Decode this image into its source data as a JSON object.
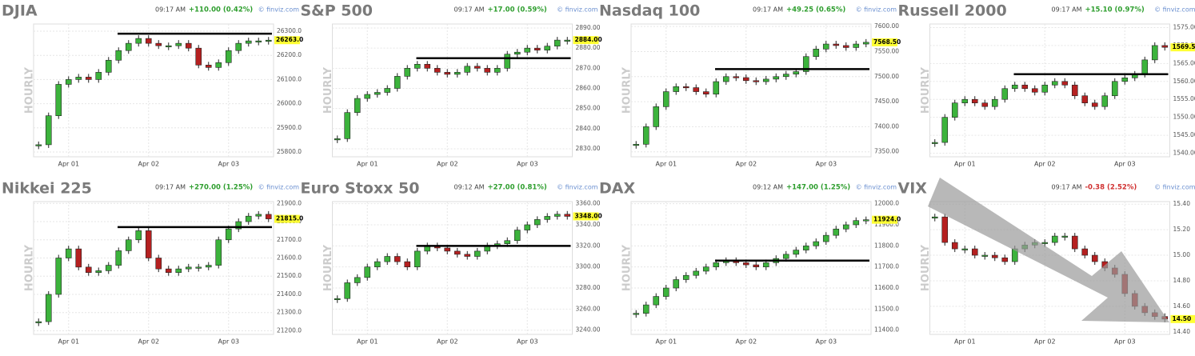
{
  "chart_data": [
    {
      "type": "candlestick",
      "title": "DJIA",
      "time": "09:17 AM",
      "change": "+110.00 (0.42%)",
      "source": "© finviz.com",
      "interval": "HOURLY",
      "categories": [
        null,
        null,
        null,
        "Apr 01",
        null,
        null,
        null,
        null,
        null,
        null,
        null,
        "Apr 02",
        null,
        null,
        null,
        null,
        null,
        null,
        null,
        "Apr 03",
        null,
        null,
        null,
        null
      ],
      "values": [
        25830,
        25950,
        26080,
        26100,
        26110,
        26100,
        26130,
        26180,
        26220,
        26250,
        26270,
        26250,
        26240,
        26240,
        26250,
        26230,
        26160,
        26150,
        26170,
        26220,
        26250,
        26260,
        26260,
        26263
      ],
      "value_labels": [
        null,
        null,
        null,
        null,
        null,
        null,
        null,
        null,
        null,
        null,
        null,
        null,
        null,
        null,
        null,
        null,
        null,
        null,
        null,
        null,
        null,
        null,
        null,
        "26263.0"
      ],
      "level": 26290,
      "ylim": [
        25780,
        26330
      ],
      "yticks": [
        {
          "value": 25800,
          "label": "25800.0"
        },
        {
          "value": 25900,
          "label": "25900.0"
        },
        {
          "value": 26000,
          "label": "26000.0"
        },
        {
          "value": 26100,
          "label": "26100.0"
        },
        {
          "value": 26200,
          "label": "26200.0"
        },
        {
          "value": 26300,
          "label": "26300.0"
        }
      ],
      "change_color": "#2e9e2e",
      "up_color": "#3cb33c",
      "down_color": "#b52020",
      "grid": true
    },
    {
      "type": "candlestick",
      "title": "S&P 500",
      "time": "09:17 AM",
      "change": "+17.00 (0.59%)",
      "source": "© finviz.com",
      "interval": "HOURLY",
      "categories": [
        null,
        null,
        null,
        "Apr 01",
        null,
        null,
        null,
        null,
        null,
        null,
        null,
        "Apr 02",
        null,
        null,
        null,
        null,
        null,
        null,
        null,
        "Apr 03",
        null,
        null,
        null,
        null
      ],
      "values": [
        2835,
        2848,
        2855,
        2857,
        2858,
        2860,
        2866,
        2870,
        2872,
        2870,
        2868,
        2867,
        2868,
        2871,
        2870,
        2868,
        2870,
        2877,
        2878,
        2880,
        2879,
        2881,
        2884,
        2884
      ],
      "value_labels": [
        null,
        null,
        null,
        null,
        null,
        null,
        null,
        null,
        null,
        null,
        null,
        null,
        null,
        null,
        null,
        null,
        null,
        null,
        null,
        null,
        null,
        null,
        null,
        "2884.00"
      ],
      "level": 2875,
      "ylim": [
        2826,
        2892
      ],
      "yticks": [
        {
          "value": 2830,
          "label": "2830.00"
        },
        {
          "value": 2840,
          "label": "2840.00"
        },
        {
          "value": 2850,
          "label": "2850.00"
        },
        {
          "value": 2860,
          "label": "2860.00"
        },
        {
          "value": 2870,
          "label": "2870.00"
        },
        {
          "value": 2880,
          "label": "2880.00"
        },
        {
          "value": 2890,
          "label": "2890.00"
        }
      ],
      "change_color": "#2e9e2e",
      "up_color": "#3cb33c",
      "down_color": "#b52020",
      "grid": true
    },
    {
      "type": "candlestick",
      "title": "Nasdaq 100",
      "time": "09:17 AM",
      "change": "+49.25 (0.65%)",
      "source": "© finviz.com",
      "interval": "HOURLY",
      "categories": [
        null,
        null,
        null,
        "Apr 01",
        null,
        null,
        null,
        null,
        null,
        null,
        null,
        "Apr 02",
        null,
        null,
        null,
        null,
        null,
        null,
        null,
        "Apr 03",
        null,
        null,
        null,
        null
      ],
      "values": [
        7365,
        7400,
        7440,
        7470,
        7480,
        7478,
        7470,
        7465,
        7490,
        7500,
        7498,
        7492,
        7490,
        7495,
        7500,
        7505,
        7510,
        7540,
        7555,
        7565,
        7562,
        7558,
        7565,
        7568.5
      ],
      "value_labels": [
        null,
        null,
        null,
        null,
        null,
        null,
        null,
        null,
        null,
        null,
        null,
        null,
        null,
        null,
        null,
        null,
        null,
        null,
        null,
        null,
        null,
        null,
        null,
        "7568.50"
      ],
      "level": 7515,
      "ylim": [
        7340,
        7605
      ],
      "yticks": [
        {
          "value": 7350,
          "label": "7350.00"
        },
        {
          "value": 7400,
          "label": "7400.00"
        },
        {
          "value": 7450,
          "label": "7450.00"
        },
        {
          "value": 7500,
          "label": "7500.00"
        },
        {
          "value": 7550,
          "label": "7550.00"
        },
        {
          "value": 7600,
          "label": "7600.00"
        }
      ],
      "change_color": "#2e9e2e",
      "up_color": "#3cb33c",
      "down_color": "#b52020",
      "grid": true
    },
    {
      "type": "candlestick",
      "title": "Russell 2000",
      "time": "09:17 AM",
      "change": "+15.10 (0.97%)",
      "source": "© finviz.com",
      "interval": "HOURLY",
      "categories": [
        null,
        null,
        null,
        "Apr 01",
        null,
        null,
        null,
        null,
        null,
        null,
        null,
        "Apr 02",
        null,
        null,
        null,
        null,
        null,
        null,
        null,
        "Apr 03",
        null,
        null,
        null,
        null
      ],
      "values": [
        1543,
        1550,
        1554,
        1555,
        1554,
        1553,
        1555,
        1558,
        1559,
        1558,
        1557,
        1559,
        1560,
        1559,
        1556,
        1554,
        1553,
        1556,
        1560,
        1561,
        1562,
        1566,
        1570,
        1569.5
      ],
      "value_labels": [
        null,
        null,
        null,
        null,
        null,
        null,
        null,
        null,
        null,
        null,
        null,
        null,
        null,
        null,
        null,
        null,
        null,
        null,
        null,
        null,
        null,
        null,
        null,
        "1569.50"
      ],
      "level": 1562,
      "ylim": [
        1539,
        1576
      ],
      "yticks": [
        {
          "value": 1540,
          "label": "1540.00"
        },
        {
          "value": 1545,
          "label": "1545.00"
        },
        {
          "value": 1550,
          "label": "1550.00"
        },
        {
          "value": 1555,
          "label": "1555.00"
        },
        {
          "value": 1560,
          "label": "1560.00"
        },
        {
          "value": 1565,
          "label": "1565.00"
        },
        {
          "value": 1570,
          "label": "1570.00"
        },
        {
          "value": 1575,
          "label": "1575.00"
        }
      ],
      "change_color": "#2e9e2e",
      "up_color": "#3cb33c",
      "down_color": "#b52020",
      "grid": true
    },
    {
      "type": "candlestick",
      "title": "Nikkei 225",
      "time": "09:17 AM",
      "change": "+270.00 (1.25%)",
      "source": "© finviz.com",
      "interval": "HOURLY",
      "categories": [
        null,
        null,
        null,
        "Apr 01",
        null,
        null,
        null,
        null,
        null,
        null,
        null,
        "Apr 02",
        null,
        null,
        null,
        null,
        null,
        null,
        null,
        "Apr 03",
        null,
        null,
        null,
        null
      ],
      "values": [
        21250,
        21400,
        21600,
        21650,
        21550,
        21520,
        21530,
        21560,
        21640,
        21700,
        21750,
        21600,
        21540,
        21520,
        21540,
        21550,
        21550,
        21560,
        21700,
        21760,
        21800,
        21830,
        21840,
        21815
      ],
      "value_labels": [
        null,
        null,
        null,
        null,
        null,
        null,
        null,
        null,
        null,
        null,
        null,
        null,
        null,
        null,
        null,
        null,
        null,
        null,
        null,
        null,
        null,
        null,
        null,
        "21815.0"
      ],
      "level": 21770,
      "ylim": [
        21180,
        21910
      ],
      "yticks": [
        {
          "value": 21200,
          "label": "21200.0"
        },
        {
          "value": 21300,
          "label": "21300.0"
        },
        {
          "value": 21400,
          "label": "21400.0"
        },
        {
          "value": 21500,
          "label": "21500.0"
        },
        {
          "value": 21600,
          "label": "21600.0"
        },
        {
          "value": 21700,
          "label": "21700.0"
        },
        {
          "value": 21800,
          "label": "21800.0"
        },
        {
          "value": 21900,
          "label": "21900.0"
        }
      ],
      "change_color": "#2e9e2e",
      "up_color": "#3cb33c",
      "down_color": "#b52020",
      "grid": true
    },
    {
      "type": "candlestick",
      "title": "Euro Stoxx 50",
      "time": "09:12 AM",
      "change": "+27.00 (0.81%)",
      "source": "© finviz.com",
      "interval": "HOURLY",
      "categories": [
        null,
        null,
        null,
        "Apr 01",
        null,
        null,
        null,
        null,
        null,
        null,
        null,
        "Apr 02",
        null,
        null,
        null,
        null,
        null,
        null,
        null,
        "Apr 03",
        null,
        null,
        null,
        null
      ],
      "values": [
        3270,
        3285,
        3290,
        3300,
        3305,
        3310,
        3305,
        3300,
        3315,
        3320,
        3318,
        3315,
        3312,
        3310,
        3315,
        3320,
        3322,
        3325,
        3335,
        3340,
        3345,
        3348,
        3350,
        3348
      ],
      "value_labels": [
        null,
        null,
        null,
        null,
        null,
        null,
        null,
        null,
        null,
        null,
        null,
        null,
        null,
        null,
        null,
        null,
        null,
        null,
        null,
        null,
        null,
        null,
        null,
        "3348.00"
      ],
      "level": 3320,
      "ylim": [
        3236,
        3362
      ],
      "yticks": [
        {
          "value": 3240,
          "label": "3240.00"
        },
        {
          "value": 3260,
          "label": "3260.00"
        },
        {
          "value": 3280,
          "label": "3280.00"
        },
        {
          "value": 3300,
          "label": "3300.00"
        },
        {
          "value": 3320,
          "label": "3320.00"
        },
        {
          "value": 3340,
          "label": "3340.00"
        },
        {
          "value": 3360,
          "label": "3360.00"
        }
      ],
      "change_color": "#2e9e2e",
      "up_color": "#3cb33c",
      "down_color": "#b52020",
      "grid": true
    },
    {
      "type": "candlestick",
      "title": "DAX",
      "time": "09:12 AM",
      "change": "+147.00 (1.25%)",
      "source": "© finviz.com",
      "interval": "HOURLY",
      "categories": [
        null,
        null,
        null,
        "Apr 01",
        null,
        null,
        null,
        null,
        null,
        null,
        null,
        "Apr 02",
        null,
        null,
        null,
        null,
        null,
        null,
        null,
        "Apr 03",
        null,
        null,
        null,
        null
      ],
      "values": [
        11480,
        11520,
        11560,
        11600,
        11640,
        11660,
        11680,
        11700,
        11720,
        11730,
        11720,
        11710,
        11700,
        11720,
        11740,
        11760,
        11780,
        11800,
        11820,
        11850,
        11880,
        11900,
        11920,
        11924
      ],
      "value_labels": [
        null,
        null,
        null,
        null,
        null,
        null,
        null,
        null,
        null,
        null,
        null,
        null,
        null,
        null,
        null,
        null,
        null,
        null,
        null,
        null,
        null,
        null,
        null,
        "11924.0"
      ],
      "level": 11730,
      "ylim": [
        11380,
        12010
      ],
      "yticks": [
        {
          "value": 11400,
          "label": "11400.0"
        },
        {
          "value": 11500,
          "label": "11500.0"
        },
        {
          "value": 11600,
          "label": "11600.0"
        },
        {
          "value": 11700,
          "label": "11700.0"
        },
        {
          "value": 11800,
          "label": "11800.0"
        },
        {
          "value": 11900,
          "label": "11900.0"
        },
        {
          "value": 12000,
          "label": "12000.0"
        }
      ],
      "change_color": "#2e9e2e",
      "up_color": "#3cb33c",
      "down_color": "#b52020",
      "grid": true
    },
    {
      "type": "candlestick",
      "title": "VIX",
      "time": "09:17 AM",
      "change": "-0.38 (2.52%)",
      "source": "© finviz.com",
      "interval": "HOURLY",
      "categories": [
        null,
        null,
        null,
        "Apr 01",
        null,
        null,
        null,
        null,
        null,
        null,
        null,
        "Apr 02",
        null,
        null,
        null,
        null,
        null,
        null,
        null,
        "Apr 03",
        null,
        null,
        null,
        null
      ],
      "values": [
        15.3,
        15.1,
        15.05,
        15.05,
        15.0,
        15.0,
        14.98,
        14.95,
        15.05,
        15.08,
        15.1,
        15.1,
        15.15,
        15.15,
        15.05,
        15.0,
        14.95,
        14.9,
        14.85,
        14.7,
        14.6,
        14.55,
        14.52,
        14.5
      ],
      "value_labels": [
        null,
        null,
        null,
        null,
        null,
        null,
        null,
        null,
        null,
        null,
        null,
        null,
        null,
        null,
        null,
        null,
        null,
        null,
        null,
        null,
        null,
        null,
        null,
        "14.50"
      ],
      "ylim": [
        14.38,
        15.42
      ],
      "yticks": [
        {
          "value": 14.4,
          "label": "14.40"
        },
        {
          "value": 14.6,
          "label": "14.60"
        },
        {
          "value": 14.8,
          "label": "14.80"
        },
        {
          "value": 15.0,
          "label": "15.00"
        },
        {
          "value": 15.2,
          "label": "15.20"
        },
        {
          "value": 15.4,
          "label": "15.40"
        }
      ],
      "change_color": "#d03030",
      "up_color": "#3cb33c",
      "down_color": "#b52020",
      "grid": true
    }
  ]
}
